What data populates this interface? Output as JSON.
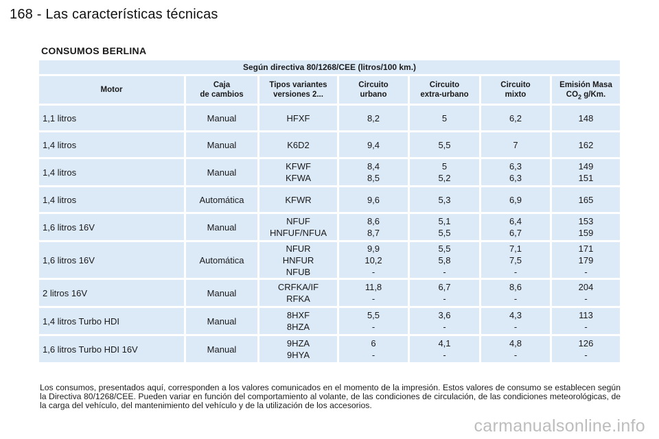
{
  "page": {
    "header": "168 - Las características técnicas",
    "section_title": "CONSUMOS BERLINA",
    "watermark": "carmanualsonline.info"
  },
  "table": {
    "directive": "Según directiva 80/1268/CEE (litros/100 km.)",
    "columns": {
      "motor": "Motor",
      "caja_1": "Caja",
      "caja_2": "de cambios",
      "tipos_1": "Tipos variantes",
      "tipos_2": "versiones 2...",
      "urbano_1": "Circuito",
      "urbano_2": "urbano",
      "extra_1": "Circuito",
      "extra_2": "extra-urbano",
      "mixto_1": "Circuito",
      "mixto_2": "mixto",
      "emision_1": "Emisión Masa",
      "emision_co": "CO",
      "emision_sub": "2",
      "emision_unit": " g/Km."
    },
    "rows": [
      {
        "motor": "1,1 litros",
        "caja": "Manual",
        "tipos": [
          "HFXF"
        ],
        "urbano": [
          "8,2"
        ],
        "extra": [
          "5"
        ],
        "mixto": [
          "6,2"
        ],
        "emision": [
          "148"
        ]
      },
      {
        "motor": "1,4 litros",
        "caja": "Manual",
        "tipos": [
          "K6D2"
        ],
        "urbano": [
          "9,4"
        ],
        "extra": [
          "5,5"
        ],
        "mixto": [
          "7"
        ],
        "emision": [
          "162"
        ]
      },
      {
        "motor": "1,4 litros",
        "caja": "Manual",
        "tipos": [
          "KFWF",
          "KFWA"
        ],
        "urbano": [
          "8,4",
          "8,5"
        ],
        "extra": [
          "5",
          "5,2"
        ],
        "mixto": [
          "6,3",
          "6,3"
        ],
        "emision": [
          "149",
          "151"
        ]
      },
      {
        "motor": "1,4 litros",
        "caja": "Automática",
        "tipos": [
          "KFWR"
        ],
        "urbano": [
          "9,6"
        ],
        "extra": [
          "5,3"
        ],
        "mixto": [
          "6,9"
        ],
        "emision": [
          "165"
        ]
      },
      {
        "motor": "1,6 litros 16V",
        "caja": "Manual",
        "tipos": [
          "NFUF",
          "HNFUF/NFUA"
        ],
        "urbano": [
          "8,6",
          "8,7"
        ],
        "extra": [
          "5,1",
          "5,5"
        ],
        "mixto": [
          "6,4",
          "6,7"
        ],
        "emision": [
          "153",
          "159"
        ]
      },
      {
        "motor": "1,6 litros 16V",
        "caja": "Automática",
        "tipos": [
          "NFUR",
          "HNFUR",
          "NFUB"
        ],
        "urbano": [
          "9,9",
          "10,2",
          "-"
        ],
        "extra": [
          "5,5",
          "5,8",
          "-"
        ],
        "mixto": [
          "7,1",
          "7,5",
          "-"
        ],
        "emision": [
          "171",
          "179",
          "-"
        ]
      },
      {
        "motor": "2 litros 16V",
        "caja": "Manual",
        "tipos": [
          "CRFKA/IF",
          "RFKA"
        ],
        "urbano": [
          "11,8",
          "-"
        ],
        "extra": [
          "6,7",
          "-"
        ],
        "mixto": [
          "8,6",
          "-"
        ],
        "emision": [
          "204",
          "-"
        ]
      },
      {
        "motor": "1,4 litros Turbo HDI",
        "caja": "Manual",
        "tipos": [
          "8HXF",
          "8HZA"
        ],
        "urbano": [
          "5,5",
          "-"
        ],
        "extra": [
          "3,6",
          "-"
        ],
        "mixto": [
          "4,3",
          "-"
        ],
        "emision": [
          "113",
          "-"
        ]
      },
      {
        "motor": "1,6 litros Turbo HDI 16V",
        "caja": "Manual",
        "tipos": [
          "9HZA",
          "9HYA"
        ],
        "urbano": [
          "6",
          "-"
        ],
        "extra": [
          "4,1",
          "-"
        ],
        "mixto": [
          "4,8",
          "-"
        ],
        "emision": [
          "126",
          "-"
        ]
      }
    ]
  },
  "note": "Los consumos, presentados aquí, corresponden a los valores comunicados en el momento de la impresión. Estos valores de consumo se establecen según la Directiva 80/1268/CEE. Pueden variar en función del comportamiento al volante, de las condiciones de circulación, de las condiciones meteorológicas, de la carga del vehículo, del mantenimiento del vehículo y de la utilización de los accesorios."
}
